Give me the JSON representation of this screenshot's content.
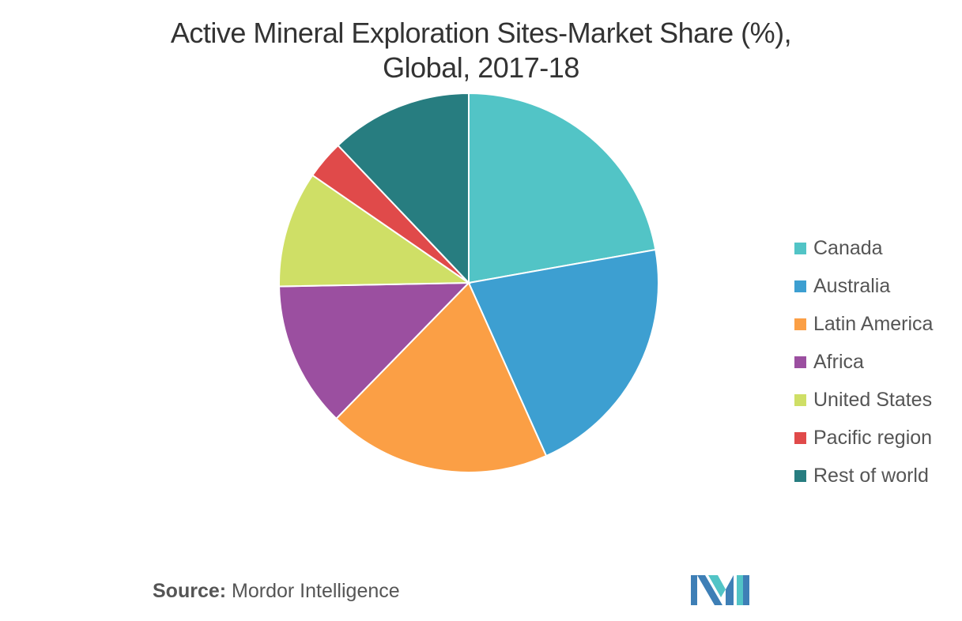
{
  "title_line1": "Active Mineral Exploration Sites-Market Share (%),",
  "title_line2": "Global, 2017-18",
  "source": {
    "label": "Source:",
    "text": "Mordor Intelligence"
  },
  "chart_data": {
    "type": "pie",
    "title": "Active Mineral Exploration Sites-Market Share (%), Global, 2017-18",
    "start_angle_deg": 0,
    "direction": "clockwise",
    "legend_position": "right",
    "slices": [
      {
        "label": "Canada",
        "value": 22.2,
        "color": "#52c4c6"
      },
      {
        "label": "Australia",
        "value": 21.1,
        "color": "#3d9fd1"
      },
      {
        "label": "Latin America",
        "value": 19.0,
        "color": "#fb9f45"
      },
      {
        "label": "Africa",
        "value": 12.4,
        "color": "#9b4fa0"
      },
      {
        "label": "United States",
        "value": 9.9,
        "color": "#cfdf66"
      },
      {
        "label": "Pacific region",
        "value": 3.3,
        "color": "#e04a4a"
      },
      {
        "label": "Rest of world",
        "value": 12.1,
        "color": "#277d80"
      }
    ]
  },
  "logo": {
    "name": "mordor-intelligence-logo",
    "colors": [
      "#3e7fb6",
      "#52c4c6"
    ]
  }
}
